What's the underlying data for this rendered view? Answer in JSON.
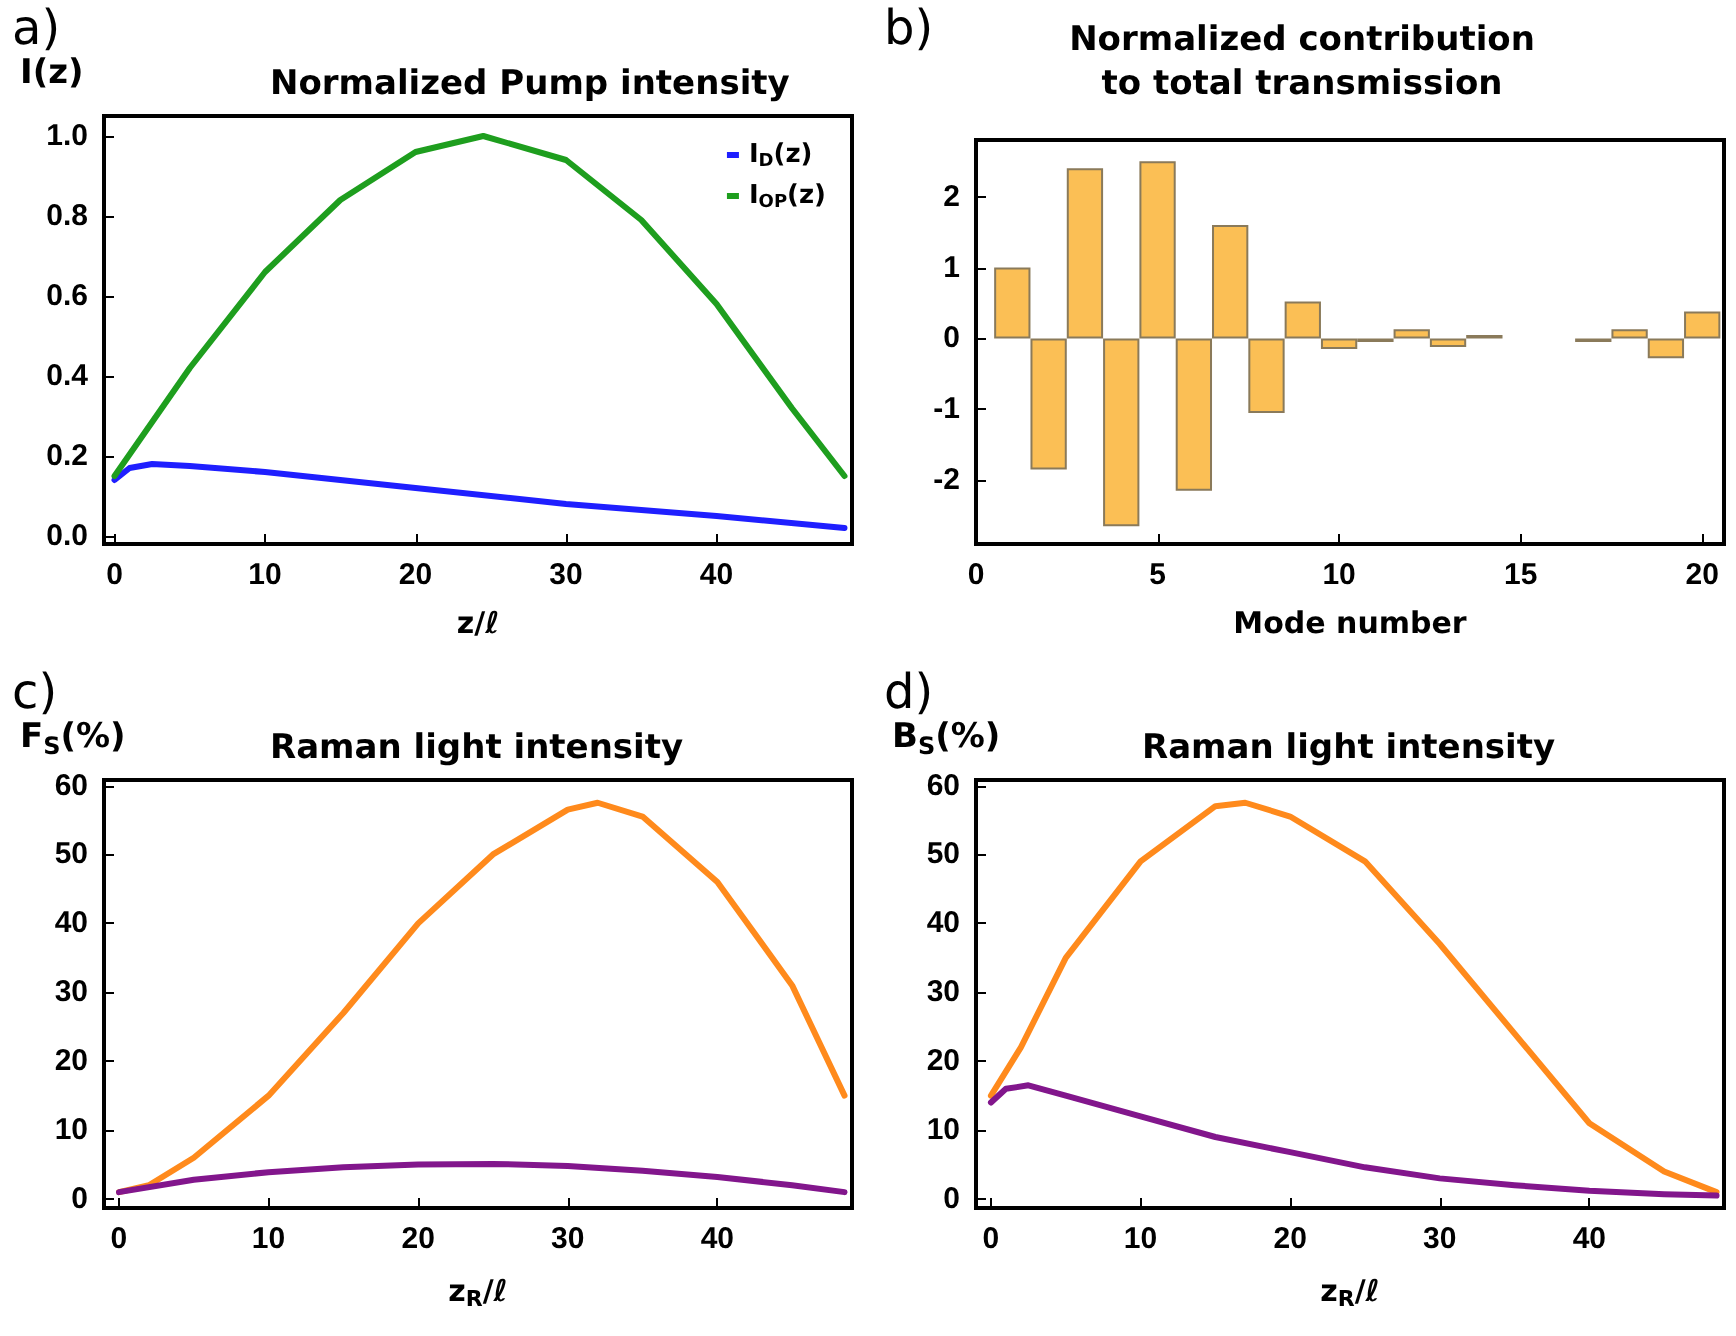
{
  "chart_data": [
    {
      "type": "line",
      "title": "Normalized Pump intensity",
      "ylabel": "I(z)",
      "xlabel": "z/ℓ",
      "annotations": [
        "a)"
      ],
      "legend": "top right",
      "grid": false,
      "marker": "none",
      "xlim": [
        -0.7,
        49
      ],
      "xticks": [
        0,
        10,
        20,
        30,
        40
      ],
      "ylim": [
        -0.02,
        1.05
      ],
      "yticks": [
        {
          "value": 0,
          "label": "0.0"
        },
        0.2,
        0.4,
        0.6,
        0.8,
        {
          "value": 1,
          "label": "1.0"
        }
      ],
      "series": [
        {
          "name": "I$_{D}$(z)",
          "color": "#1f1fff",
          "x": [
            0,
            1,
            2.5,
            5,
            10,
            20,
            30,
            40,
            48.5
          ],
          "values": [
            0.14,
            0.17,
            0.18,
            0.175,
            0.16,
            0.12,
            0.08,
            0.05,
            0.02
          ]
        },
        {
          "name": "I$_{OP}$(z)",
          "color": "#1e9e1e",
          "x": [
            0,
            5,
            10,
            15,
            20,
            24.5,
            30,
            35,
            40,
            45,
            48.5
          ],
          "values": [
            0.15,
            0.42,
            0.66,
            0.84,
            0.96,
            1.0,
            0.94,
            0.79,
            0.58,
            0.32,
            0.15
          ]
        }
      ]
    },
    {
      "type": "bar",
      "title": "Normalized contribution\nto total transmission",
      "xlabel": "Mode number",
      "annotations": [
        "b)"
      ],
      "grid": false,
      "legend": false,
      "xlim": [
        0,
        20.6
      ],
      "xticks": [
        0,
        5,
        10,
        15,
        20
      ],
      "ylim": [
        -2.9,
        2.8
      ],
      "yticks": [
        -2,
        -1,
        0,
        1,
        2
      ],
      "x": [
        1,
        2,
        3,
        4,
        5,
        6,
        7,
        8,
        9,
        10,
        11,
        12,
        13,
        14,
        15,
        16,
        17,
        18,
        19,
        20
      ],
      "values": [
        1.0,
        -1.85,
        2.4,
        -2.65,
        2.5,
        -2.15,
        1.6,
        -1.05,
        0.52,
        -0.15,
        -0.05,
        0.13,
        -0.12,
        0.05,
        0,
        0,
        -0.05,
        0.13,
        -0.28,
        0.38
      ],
      "color": "#fbbf55"
    },
    {
      "type": "line",
      "title": "Raman light intensity",
      "ylabel": "F$_{S}$(%)",
      "xlabel": "z$_{R}$/ℓ",
      "annotations": [
        "c)"
      ],
      "legend": false,
      "grid": false,
      "marker": "none",
      "xlim": [
        -1,
        49
      ],
      "xticks": [
        0,
        10,
        20,
        30,
        40
      ],
      "ylim": [
        -1.3,
        60.8
      ],
      "yticks": [
        0,
        10,
        20,
        30,
        40,
        50,
        60
      ],
      "series": [
        {
          "color": "#ff8a1c",
          "x": [
            0,
            2,
            5,
            10,
            15,
            20,
            25,
            30,
            32,
            35,
            40,
            45,
            48.5
          ],
          "values": [
            1,
            2,
            6,
            15,
            27,
            40,
            50,
            56.5,
            57.5,
            55.5,
            46,
            31,
            15
          ]
        },
        {
          "color": "#82168c",
          "x": [
            0,
            5,
            10,
            15,
            20,
            25,
            30,
            35,
            40,
            45,
            48.5
          ],
          "values": [
            1,
            2.8,
            3.9,
            4.6,
            5,
            5.1,
            4.8,
            4.1,
            3.2,
            2,
            1
          ]
        }
      ]
    },
    {
      "type": "line",
      "title": "Raman light intensity",
      "ylabel": "B$_{S}$(%)",
      "xlabel": "z$_{R}$/ℓ",
      "annotations": [
        "d)"
      ],
      "legend": false,
      "grid": false,
      "marker": "none",
      "xlim": [
        -1,
        49
      ],
      "xticks": [
        0,
        10,
        20,
        30,
        40
      ],
      "ylim": [
        -1.3,
        60.8
      ],
      "yticks": [
        0,
        10,
        20,
        30,
        40,
        50,
        60
      ],
      "series": [
        {
          "color": "#ff8a1c",
          "x": [
            0,
            2,
            5,
            10,
            15,
            17,
            20,
            25,
            30,
            35,
            40,
            45,
            48.5
          ],
          "values": [
            15,
            22,
            35,
            49,
            57,
            57.5,
            55.5,
            49,
            37,
            24,
            11,
            4,
            1
          ]
        },
        {
          "color": "#82168c",
          "x": [
            0,
            1,
            2.5,
            5,
            10,
            15,
            20,
            25,
            30,
            35,
            40,
            45,
            48.5
          ],
          "values": [
            14,
            16,
            16.5,
            15,
            12,
            9,
            6.8,
            4.6,
            3,
            2,
            1.2,
            0.7,
            0.5
          ]
        }
      ]
    }
  ]
}
